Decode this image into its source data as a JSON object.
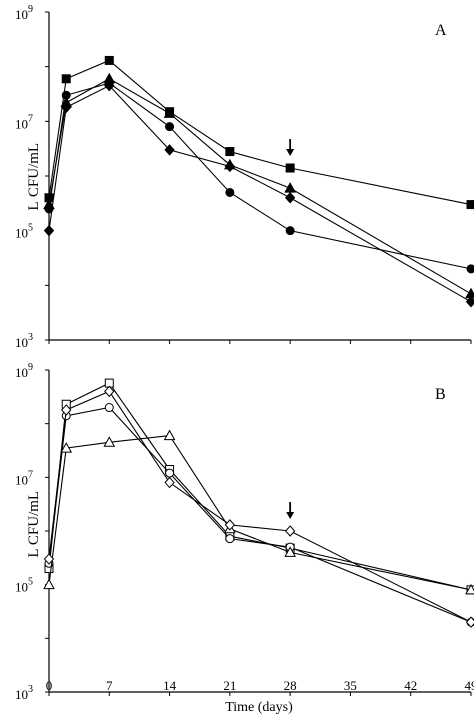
{
  "figure": {
    "xlabel": "Time (days)"
  },
  "chart_data": [
    {
      "type": "line",
      "panel_label": "A",
      "ylabel": "CFU/mL",
      "ylabel_prefix": "L",
      "yscale": "log",
      "ylim": [
        1000,
        1000000000
      ],
      "yticks": [
        {
          "base": "10",
          "exp": "3"
        },
        {
          "base": "10",
          "exp": "5"
        },
        {
          "base": "10",
          "exp": "7"
        },
        {
          "base": "10",
          "exp": "9"
        }
      ],
      "xlim": [
        0,
        49
      ],
      "xticks": [
        "0",
        "7",
        "14",
        "21",
        "28",
        "35",
        "42",
        "49"
      ],
      "arrow_at_x": 28,
      "series": [
        {
          "marker": "square",
          "filled": true,
          "points": [
            [
              0,
              400000
            ],
            [
              2,
              60000000
            ],
            [
              7,
              130000000
            ],
            [
              14,
              15000000
            ],
            [
              21,
              2800000
            ],
            [
              28,
              1400000
            ],
            [
              49,
              300000
            ]
          ]
        },
        {
          "marker": "circle",
          "filled": true,
          "points": [
            [
              0,
              250000
            ],
            [
              2,
              30000000
            ],
            [
              7,
              50000000
            ],
            [
              14,
              8000000
            ],
            [
              21,
              500000
            ],
            [
              28,
              100000
            ],
            [
              49,
              20000
            ]
          ]
        },
        {
          "marker": "triangle",
          "filled": true,
          "points": [
            [
              0,
              300000
            ],
            [
              2,
              22000000
            ],
            [
              7,
              60000000
            ],
            [
              14,
              14000000
            ],
            [
              21,
              1600000
            ],
            [
              28,
              600000
            ],
            [
              49,
              7000
            ]
          ]
        },
        {
          "marker": "diamond",
          "filled": true,
          "points": [
            [
              0,
              100000
            ],
            [
              2,
              18000000
            ],
            [
              7,
              45000000
            ],
            [
              14,
              3000000
            ],
            [
              21,
              1500000
            ],
            [
              28,
              400000
            ],
            [
              49,
              5000
            ]
          ]
        }
      ]
    },
    {
      "type": "line",
      "panel_label": "B",
      "ylabel": "CFU/mL",
      "ylabel_prefix": "L",
      "yscale": "log",
      "ylim": [
        1000,
        1000000000
      ],
      "yticks": [
        {
          "base": "10",
          "exp": "3"
        },
        {
          "base": "10",
          "exp": "5"
        },
        {
          "base": "10",
          "exp": "7"
        },
        {
          "base": "10",
          "exp": "9"
        }
      ],
      "xlim": [
        0,
        49
      ],
      "xticks": [
        "0",
        "7",
        "14",
        "21",
        "28",
        "35",
        "42",
        "49"
      ],
      "arrow_at_x": 28,
      "series": [
        {
          "marker": "square",
          "filled": false,
          "points": [
            [
              0,
              200000
            ],
            [
              2,
              230000000
            ],
            [
              7,
              570000000
            ],
            [
              14,
              14000000
            ],
            [
              21,
              800000
            ],
            [
              28,
              480000
            ],
            [
              49,
              80000
            ]
          ]
        },
        {
          "marker": "circle",
          "filled": false,
          "points": [
            [
              0,
              250000
            ],
            [
              2,
              140000000
            ],
            [
              7,
              200000000
            ],
            [
              14,
              12000000
            ],
            [
              21,
              720000
            ],
            [
              28,
              500000
            ],
            [
              49,
              20000
            ]
          ]
        },
        {
          "marker": "triangle",
          "filled": false,
          "points": [
            [
              0,
              100000
            ],
            [
              2,
              35000000
            ],
            [
              7,
              45000000
            ],
            [
              14,
              60000000
            ],
            [
              21,
              1100000
            ],
            [
              28,
              400000
            ],
            [
              49,
              80000
            ]
          ]
        },
        {
          "marker": "diamond",
          "filled": false,
          "points": [
            [
              0,
              300000
            ],
            [
              2,
              180000000
            ],
            [
              7,
              400000000
            ],
            [
              14,
              8000000
            ],
            [
              21,
              1300000
            ],
            [
              28,
              1000000
            ],
            [
              49,
              20000
            ]
          ]
        }
      ]
    }
  ]
}
